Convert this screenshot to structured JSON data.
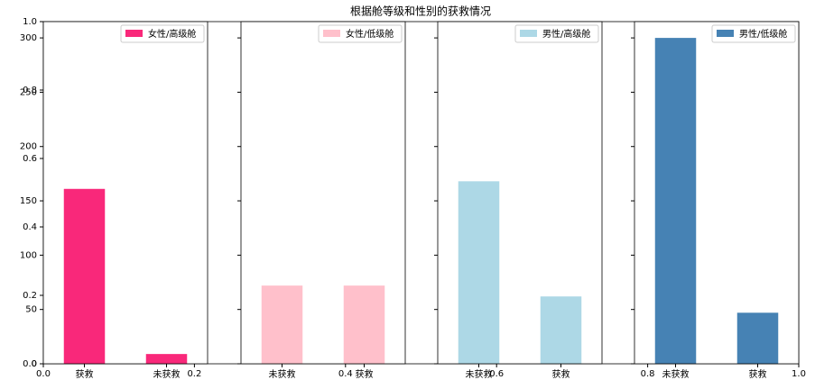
{
  "chart_data": [
    {
      "type": "frame",
      "title": "根据舱等级和性别的获救情况",
      "xlim": [
        0,
        1
      ],
      "ylim": [
        0,
        1
      ],
      "xticks": [
        {
          "value": 0,
          "label": "0.0"
        },
        0.2,
        0.4,
        0.6,
        0.8,
        {
          "value": 1,
          "label": "1.0"
        }
      ],
      "yticks": [
        {
          "value": 0,
          "label": "0.0"
        },
        0.2,
        0.4,
        0.6,
        0.8,
        {
          "value": 1,
          "label": "1.0"
        }
      ]
    },
    {
      "type": "bar",
      "categories": [
        "获救",
        "未获救"
      ],
      "series": [
        {
          "name": "女性/高级舱",
          "color": "#f9287a",
          "values": [
            161,
            9
          ]
        }
      ],
      "ylim": [
        0,
        315
      ],
      "yticks": [
        0,
        50,
        100,
        150,
        200,
        250,
        300
      ]
    },
    {
      "type": "bar",
      "categories": [
        "未获救",
        "获救"
      ],
      "series": [
        {
          "name": "女性/低级舱",
          "color": "#ffc0cb",
          "values": [
            72,
            72
          ]
        }
      ],
      "ylim": [
        0,
        315
      ]
    },
    {
      "type": "bar",
      "categories": [
        "未获救",
        "获救"
      ],
      "series": [
        {
          "name": "男性/高级舱",
          "color": "#add8e6",
          "values": [
            168,
            62
          ]
        }
      ],
      "ylim": [
        0,
        315
      ]
    },
    {
      "type": "bar",
      "categories": [
        "未获救",
        "获救"
      ],
      "series": [
        {
          "name": "男性/低级舱",
          "color": "#4682b4",
          "values": [
            300,
            47
          ]
        }
      ],
      "ylim": [
        0,
        315
      ]
    }
  ]
}
